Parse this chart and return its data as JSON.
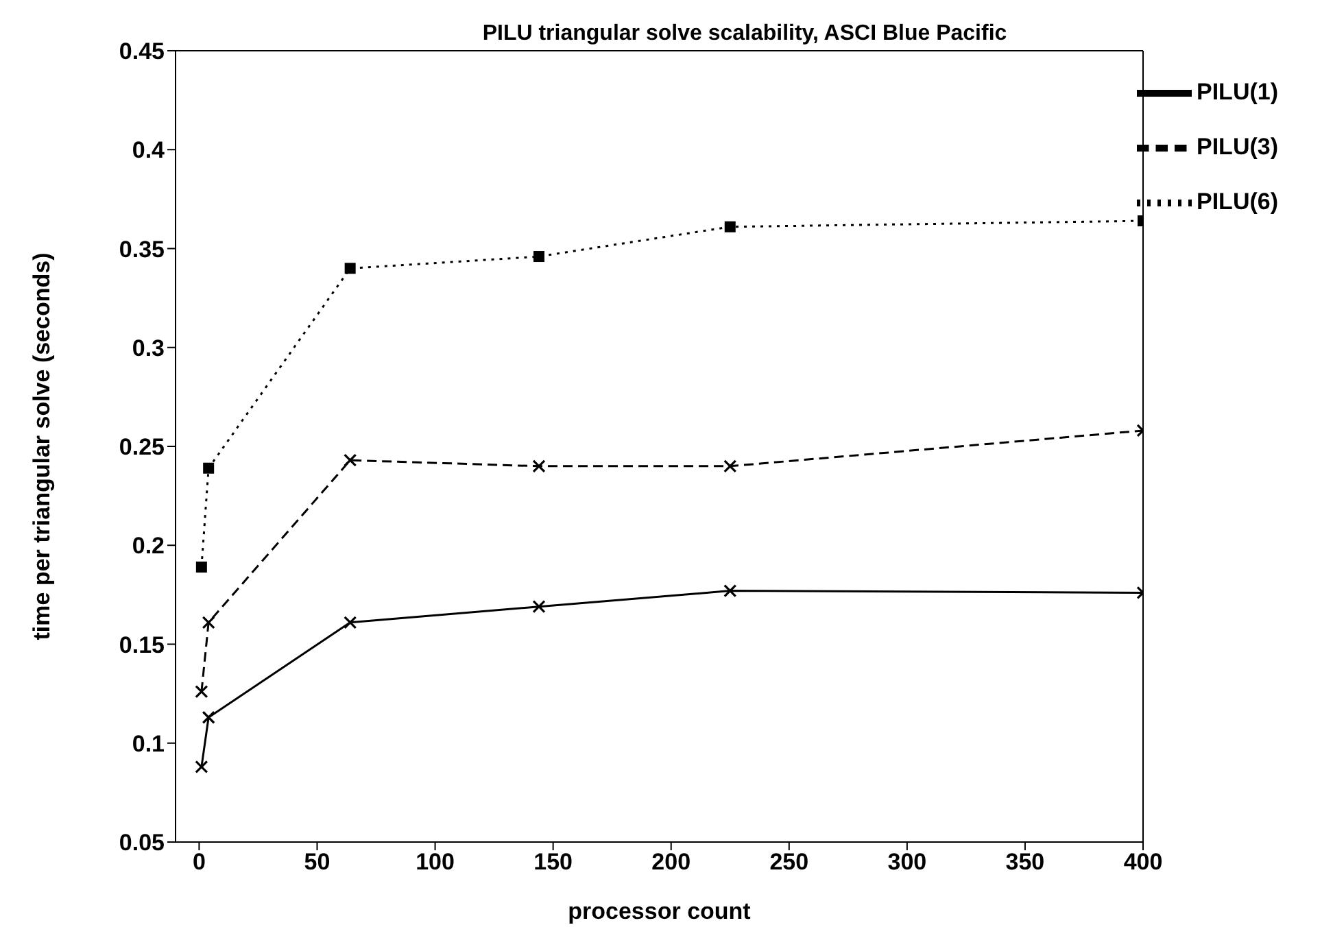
{
  "chart_data": {
    "type": "line",
    "title": "PILU triangular solve scalability, ASCI Blue Pacific",
    "xlabel": "processor count",
    "ylabel": "time per triangular solve (seconds)",
    "x": [
      1,
      4,
      64,
      144,
      225,
      400
    ],
    "xlim": [
      -10,
      400
    ],
    "xticks": [
      0,
      50,
      100,
      150,
      200,
      250,
      300,
      350,
      400
    ],
    "ylim": [
      0.05,
      0.45
    ],
    "yticks": [
      0.05,
      0.1,
      0.15,
      0.2,
      0.25,
      0.3,
      0.35,
      0.4,
      0.45
    ],
    "grid": false,
    "legend": "top right",
    "series": [
      {
        "name": "PILU(1)",
        "color": "#000000",
        "line_style": "solid",
        "marker": "cross",
        "values": [
          0.088,
          0.113,
          0.161,
          0.169,
          0.177,
          0.176
        ]
      },
      {
        "name": "PILU(3)",
        "color": "#000000",
        "line_style": "dashed",
        "marker": "cross",
        "values": [
          0.126,
          0.161,
          0.243,
          0.24,
          0.24,
          0.258
        ]
      },
      {
        "name": "PILU(6)",
        "color": "#000000",
        "line_style": "dotted",
        "marker": "square",
        "values": [
          0.189,
          0.239,
          0.34,
          0.346,
          0.361,
          0.364
        ]
      }
    ]
  }
}
